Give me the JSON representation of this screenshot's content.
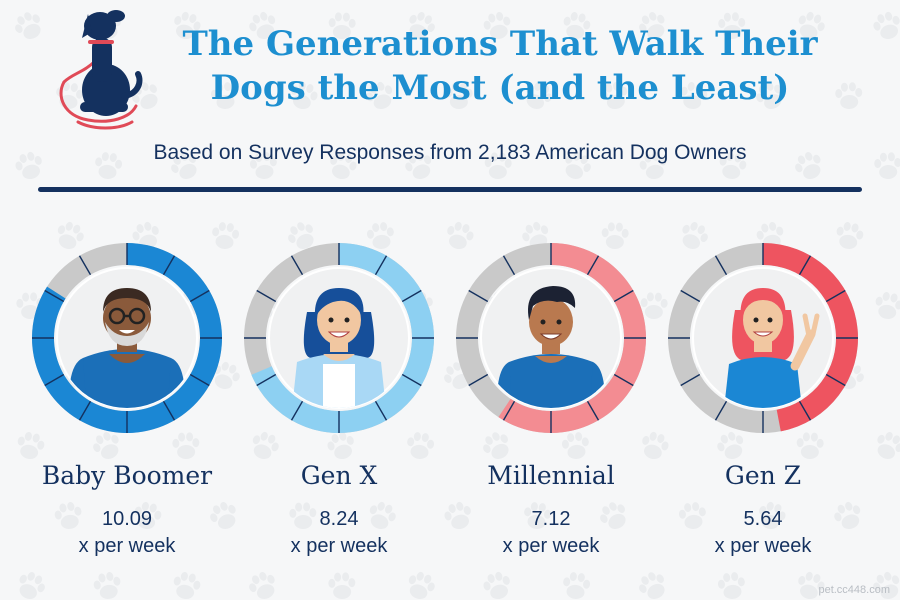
{
  "header": {
    "title_line1": "The Generations That Walk Their",
    "title_line2": "Dogs the Most (and the Least)",
    "subtitle": "Based on Survey Responses from 2,183 American Dog Owners",
    "logo_icon": "dog-with-leash-icon"
  },
  "watermark": "pet.cc448.com",
  "colors": {
    "title": "#1d8fd0",
    "text": "#14315f",
    "boomer": "#1b87d4",
    "genx": "#8dd0f2",
    "millennial": "#f38c92",
    "genz": "#ee5460",
    "empty": "#c9c9c9",
    "leash": "#e04a57"
  },
  "chart_data": {
    "type": "donut-gauge",
    "title": "The Generations That Walk Their Dogs the Most (and the Least)",
    "subtitle": "Based on Survey Responses from 2,183 American Dog Owners",
    "unit": "x per week",
    "scale_max": 12,
    "segments_per_ring": 12,
    "categories": [
      "Baby Boomer",
      "Gen X",
      "Millennial",
      "Gen Z"
    ],
    "values": [
      10.09,
      8.24,
      7.12,
      5.64
    ],
    "items": [
      {
        "name": "Baby Boomer",
        "value": "10.09",
        "unit": "x per week",
        "color": "#1b87d4"
      },
      {
        "name": "Gen X",
        "value": "8.24",
        "unit": "x per week",
        "color": "#8dd0f2"
      },
      {
        "name": "Millennial",
        "value": "7.12",
        "unit": "x per week",
        "color": "#f38c92"
      },
      {
        "name": "Gen Z",
        "value": "5.64",
        "unit": "x per week",
        "color": "#ee5460"
      }
    ]
  }
}
